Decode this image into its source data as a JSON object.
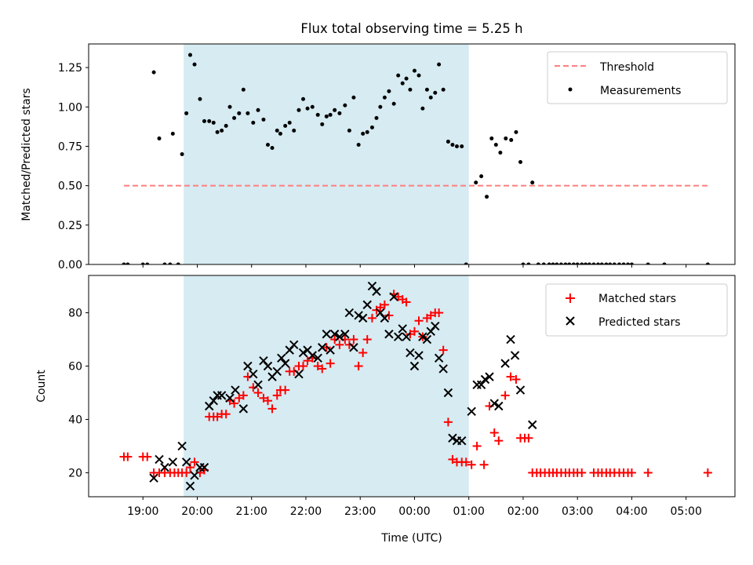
{
  "chart_data": [
    {
      "type": "scatter",
      "title": "Flux total observing time = 5.25 h",
      "xlabel": "",
      "ylabel": "Matched/Predicted stars",
      "xlim_hours": [
        18.0,
        29.9
      ],
      "ylim": [
        0,
        1.4
      ],
      "yticks": [
        0.0,
        0.25,
        0.5,
        0.75,
        1.0,
        1.25
      ],
      "ytick_labels": [
        "0.00",
        "0.25",
        "0.50",
        "0.75",
        "1.00",
        "1.25"
      ],
      "shaded_interval_hours": [
        19.75,
        25.0
      ],
      "legend": [
        "Threshold",
        "Measurements"
      ],
      "threshold": {
        "value": 0.5,
        "x_range_hours": [
          18.65,
          29.4
        ]
      },
      "measurements": [
        [
          18.65,
          0
        ],
        [
          18.72,
          0
        ],
        [
          19.0,
          0
        ],
        [
          19.08,
          0
        ],
        [
          19.2,
          1.22
        ],
        [
          19.3,
          0.8
        ],
        [
          19.4,
          0
        ],
        [
          19.5,
          0
        ],
        [
          19.55,
          0.83
        ],
        [
          19.65,
          0
        ],
        [
          19.72,
          0.7
        ],
        [
          19.8,
          0.96
        ],
        [
          19.87,
          1.33
        ],
        [
          19.95,
          1.27
        ],
        [
          20.05,
          1.05
        ],
        [
          20.13,
          0.91
        ],
        [
          20.22,
          0.91
        ],
        [
          20.3,
          0.9
        ],
        [
          20.37,
          0.84
        ],
        [
          20.45,
          0.85
        ],
        [
          20.53,
          0.88
        ],
        [
          20.6,
          1.0
        ],
        [
          20.68,
          0.93
        ],
        [
          20.77,
          0.96
        ],
        [
          20.85,
          1.11
        ],
        [
          20.93,
          0.96
        ],
        [
          21.03,
          0.9
        ],
        [
          21.12,
          0.98
        ],
        [
          21.22,
          0.92
        ],
        [
          21.3,
          0.76
        ],
        [
          21.38,
          0.74
        ],
        [
          21.47,
          0.85
        ],
        [
          21.53,
          0.83
        ],
        [
          21.62,
          0.88
        ],
        [
          21.7,
          0.9
        ],
        [
          21.78,
          0.85
        ],
        [
          21.87,
          0.98
        ],
        [
          21.95,
          1.05
        ],
        [
          22.03,
          0.99
        ],
        [
          22.12,
          1.0
        ],
        [
          22.22,
          0.95
        ],
        [
          22.3,
          0.89
        ],
        [
          22.38,
          0.94
        ],
        [
          22.45,
          0.95
        ],
        [
          22.53,
          0.98
        ],
        [
          22.62,
          0.96
        ],
        [
          22.72,
          1.01
        ],
        [
          22.8,
          0.85
        ],
        [
          22.88,
          1.06
        ],
        [
          22.97,
          0.76
        ],
        [
          23.05,
          0.83
        ],
        [
          23.13,
          0.84
        ],
        [
          23.22,
          0.87
        ],
        [
          23.3,
          0.93
        ],
        [
          23.37,
          1.0
        ],
        [
          23.45,
          1.06
        ],
        [
          23.53,
          1.1
        ],
        [
          23.62,
          1.02
        ],
        [
          23.7,
          1.2
        ],
        [
          23.78,
          1.15
        ],
        [
          23.85,
          1.18
        ],
        [
          23.92,
          1.11
        ],
        [
          24.0,
          1.23
        ],
        [
          24.08,
          1.2
        ],
        [
          24.15,
          0.99
        ],
        [
          24.23,
          1.11
        ],
        [
          24.3,
          1.06
        ],
        [
          24.38,
          1.09
        ],
        [
          24.45,
          1.27
        ],
        [
          24.53,
          1.11
        ],
        [
          24.62,
          0.78
        ],
        [
          24.7,
          0.76
        ],
        [
          24.78,
          0.75
        ],
        [
          24.87,
          0.75
        ],
        [
          24.95,
          0
        ],
        [
          25.13,
          0.52
        ],
        [
          25.23,
          0.56
        ],
        [
          25.33,
          0.43
        ],
        [
          25.42,
          0.8
        ],
        [
          25.5,
          0.76
        ],
        [
          25.58,
          0.71
        ],
        [
          25.68,
          0.8
        ],
        [
          25.78,
          0.79
        ],
        [
          25.87,
          0.84
        ],
        [
          25.95,
          0.65
        ],
        [
          26.0,
          0
        ],
        [
          26.1,
          0
        ],
        [
          26.17,
          0.52
        ],
        [
          26.28,
          0
        ],
        [
          26.38,
          0
        ],
        [
          26.48,
          0
        ],
        [
          26.55,
          0
        ],
        [
          26.62,
          0
        ],
        [
          26.7,
          0
        ],
        [
          26.78,
          0
        ],
        [
          26.85,
          0
        ],
        [
          26.93,
          0
        ],
        [
          27.0,
          0
        ],
        [
          27.08,
          0
        ],
        [
          27.15,
          0
        ],
        [
          27.22,
          0
        ],
        [
          27.3,
          0
        ],
        [
          27.38,
          0
        ],
        [
          27.45,
          0
        ],
        [
          27.53,
          0
        ],
        [
          27.6,
          0
        ],
        [
          27.68,
          0
        ],
        [
          27.77,
          0
        ],
        [
          27.85,
          0
        ],
        [
          27.93,
          0
        ],
        [
          28.0,
          0
        ],
        [
          28.3,
          0
        ],
        [
          28.6,
          0
        ],
        [
          29.4,
          0
        ]
      ]
    },
    {
      "type": "scatter",
      "title": "",
      "xlabel": "Time (UTC)",
      "ylabel": "Count",
      "xlim_hours": [
        18.0,
        29.9
      ],
      "ylim": [
        11,
        94
      ],
      "yticks": [
        20,
        40,
        60,
        80
      ],
      "ytick_labels": [
        "20",
        "40",
        "60",
        "80"
      ],
      "xticks_hours": [
        19,
        20,
        21,
        22,
        23,
        24,
        25,
        26,
        27,
        28,
        29
      ],
      "xtick_labels": [
        "19:00",
        "20:00",
        "21:00",
        "22:00",
        "23:00",
        "00:00",
        "01:00",
        "02:00",
        "03:00",
        "04:00",
        "05:00"
      ],
      "shaded_interval_hours": [
        19.75,
        25.0
      ],
      "legend": [
        "Matched stars",
        "Predicted stars"
      ],
      "matched": [
        [
          18.65,
          26
        ],
        [
          18.72,
          26
        ],
        [
          19.0,
          26
        ],
        [
          19.08,
          26
        ],
        [
          19.2,
          20
        ],
        [
          19.3,
          20
        ],
        [
          19.4,
          20
        ],
        [
          19.5,
          20
        ],
        [
          19.58,
          20
        ],
        [
          19.65,
          20
        ],
        [
          19.72,
          20
        ],
        [
          19.8,
          20
        ],
        [
          19.87,
          22
        ],
        [
          19.95,
          24
        ],
        [
          20.05,
          20
        ],
        [
          20.13,
          21
        ],
        [
          20.22,
          41
        ],
        [
          20.3,
          41
        ],
        [
          20.37,
          41
        ],
        [
          20.45,
          42
        ],
        [
          20.53,
          42
        ],
        [
          20.6,
          47
        ],
        [
          20.68,
          46
        ],
        [
          20.77,
          48
        ],
        [
          20.85,
          49
        ],
        [
          20.93,
          56
        ],
        [
          21.03,
          52
        ],
        [
          21.12,
          50
        ],
        [
          21.22,
          48
        ],
        [
          21.3,
          47
        ],
        [
          21.38,
          44
        ],
        [
          21.47,
          49
        ],
        [
          21.53,
          51
        ],
        [
          21.62,
          51
        ],
        [
          21.7,
          58
        ],
        [
          21.78,
          58
        ],
        [
          21.87,
          60
        ],
        [
          21.95,
          60
        ],
        [
          22.03,
          62
        ],
        [
          22.12,
          63
        ],
        [
          22.22,
          60
        ],
        [
          22.3,
          59
        ],
        [
          22.38,
          67
        ],
        [
          22.45,
          61
        ],
        [
          22.53,
          70
        ],
        [
          22.62,
          68
        ],
        [
          22.72,
          70
        ],
        [
          22.8,
          68
        ],
        [
          22.88,
          70
        ],
        [
          22.97,
          60
        ],
        [
          23.05,
          65
        ],
        [
          23.13,
          70
        ],
        [
          23.22,
          78
        ],
        [
          23.3,
          81
        ],
        [
          23.37,
          82
        ],
        [
          23.45,
          83
        ],
        [
          23.53,
          79
        ],
        [
          23.62,
          87
        ],
        [
          23.7,
          86
        ],
        [
          23.78,
          85
        ],
        [
          23.85,
          84
        ],
        [
          23.92,
          72
        ],
        [
          24.0,
          73
        ],
        [
          24.08,
          77
        ],
        [
          24.15,
          71
        ],
        [
          24.23,
          78
        ],
        [
          24.3,
          79
        ],
        [
          24.38,
          80
        ],
        [
          24.45,
          80
        ],
        [
          24.53,
          66
        ],
        [
          24.62,
          39
        ],
        [
          24.7,
          25
        ],
        [
          24.78,
          24
        ],
        [
          24.87,
          24
        ],
        [
          24.95,
          24
        ],
        [
          25.05,
          23
        ],
        [
          25.15,
          30
        ],
        [
          25.28,
          23
        ],
        [
          25.38,
          45
        ],
        [
          25.47,
          35
        ],
        [
          25.55,
          32
        ],
        [
          25.67,
          49
        ],
        [
          25.77,
          56
        ],
        [
          25.87,
          55
        ],
        [
          25.95,
          33
        ],
        [
          26.03,
          33
        ],
        [
          26.1,
          33
        ],
        [
          26.17,
          20
        ],
        [
          26.25,
          20
        ],
        [
          26.32,
          20
        ],
        [
          26.4,
          20
        ],
        [
          26.48,
          20
        ],
        [
          26.55,
          20
        ],
        [
          26.62,
          20
        ],
        [
          26.7,
          20
        ],
        [
          26.78,
          20
        ],
        [
          26.85,
          20
        ],
        [
          26.93,
          20
        ],
        [
          27.0,
          20
        ],
        [
          27.08,
          20
        ],
        [
          27.3,
          20
        ],
        [
          27.38,
          20
        ],
        [
          27.45,
          20
        ],
        [
          27.53,
          20
        ],
        [
          27.6,
          20
        ],
        [
          27.68,
          20
        ],
        [
          27.77,
          20
        ],
        [
          27.85,
          20
        ],
        [
          27.93,
          20
        ],
        [
          28.0,
          20
        ],
        [
          28.3,
          20
        ],
        [
          29.4,
          20
        ]
      ],
      "predicted": [
        [
          19.2,
          18
        ],
        [
          19.3,
          25
        ],
        [
          19.4,
          22
        ],
        [
          19.55,
          24
        ],
        [
          19.72,
          30
        ],
        [
          19.8,
          24
        ],
        [
          19.87,
          15
        ],
        [
          19.95,
          19
        ],
        [
          20.05,
          22
        ],
        [
          20.13,
          22
        ],
        [
          20.22,
          45
        ],
        [
          20.3,
          47
        ],
        [
          20.37,
          49
        ],
        [
          20.45,
          49
        ],
        [
          20.6,
          48
        ],
        [
          20.7,
          51
        ],
        [
          20.85,
          44
        ],
        [
          20.93,
          60
        ],
        [
          21.03,
          57
        ],
        [
          21.12,
          53
        ],
        [
          21.22,
          62
        ],
        [
          21.3,
          60
        ],
        [
          21.38,
          56
        ],
        [
          21.47,
          58
        ],
        [
          21.55,
          63
        ],
        [
          21.62,
          61
        ],
        [
          21.7,
          66
        ],
        [
          21.78,
          68
        ],
        [
          21.87,
          57
        ],
        [
          21.95,
          65
        ],
        [
          22.03,
          66
        ],
        [
          22.12,
          64
        ],
        [
          22.22,
          63
        ],
        [
          22.3,
          67
        ],
        [
          22.38,
          72
        ],
        [
          22.45,
          66
        ],
        [
          22.53,
          72
        ],
        [
          22.62,
          71
        ],
        [
          22.72,
          72
        ],
        [
          22.8,
          80
        ],
        [
          22.88,
          67
        ],
        [
          22.97,
          79
        ],
        [
          23.05,
          78
        ],
        [
          23.13,
          83
        ],
        [
          23.22,
          90
        ],
        [
          23.3,
          88
        ],
        [
          23.37,
          80
        ],
        [
          23.45,
          78
        ],
        [
          23.53,
          72
        ],
        [
          23.62,
          86
        ],
        [
          23.7,
          71
        ],
        [
          23.78,
          74
        ],
        [
          23.85,
          71
        ],
        [
          23.92,
          65
        ],
        [
          24.0,
          60
        ],
        [
          24.08,
          64
        ],
        [
          24.15,
          71
        ],
        [
          24.23,
          70
        ],
        [
          24.3,
          73
        ],
        [
          24.38,
          75
        ],
        [
          24.45,
          63
        ],
        [
          24.53,
          59
        ],
        [
          24.62,
          50
        ],
        [
          24.7,
          33
        ],
        [
          24.78,
          32
        ],
        [
          24.87,
          32
        ],
        [
          25.05,
          43
        ],
        [
          25.15,
          53
        ],
        [
          25.23,
          53
        ],
        [
          25.3,
          55
        ],
        [
          25.38,
          56
        ],
        [
          25.47,
          46
        ],
        [
          25.55,
          45
        ],
        [
          25.67,
          61
        ],
        [
          25.77,
          70
        ],
        [
          25.85,
          64
        ],
        [
          25.95,
          51
        ],
        [
          26.17,
          38
        ]
      ]
    }
  ]
}
